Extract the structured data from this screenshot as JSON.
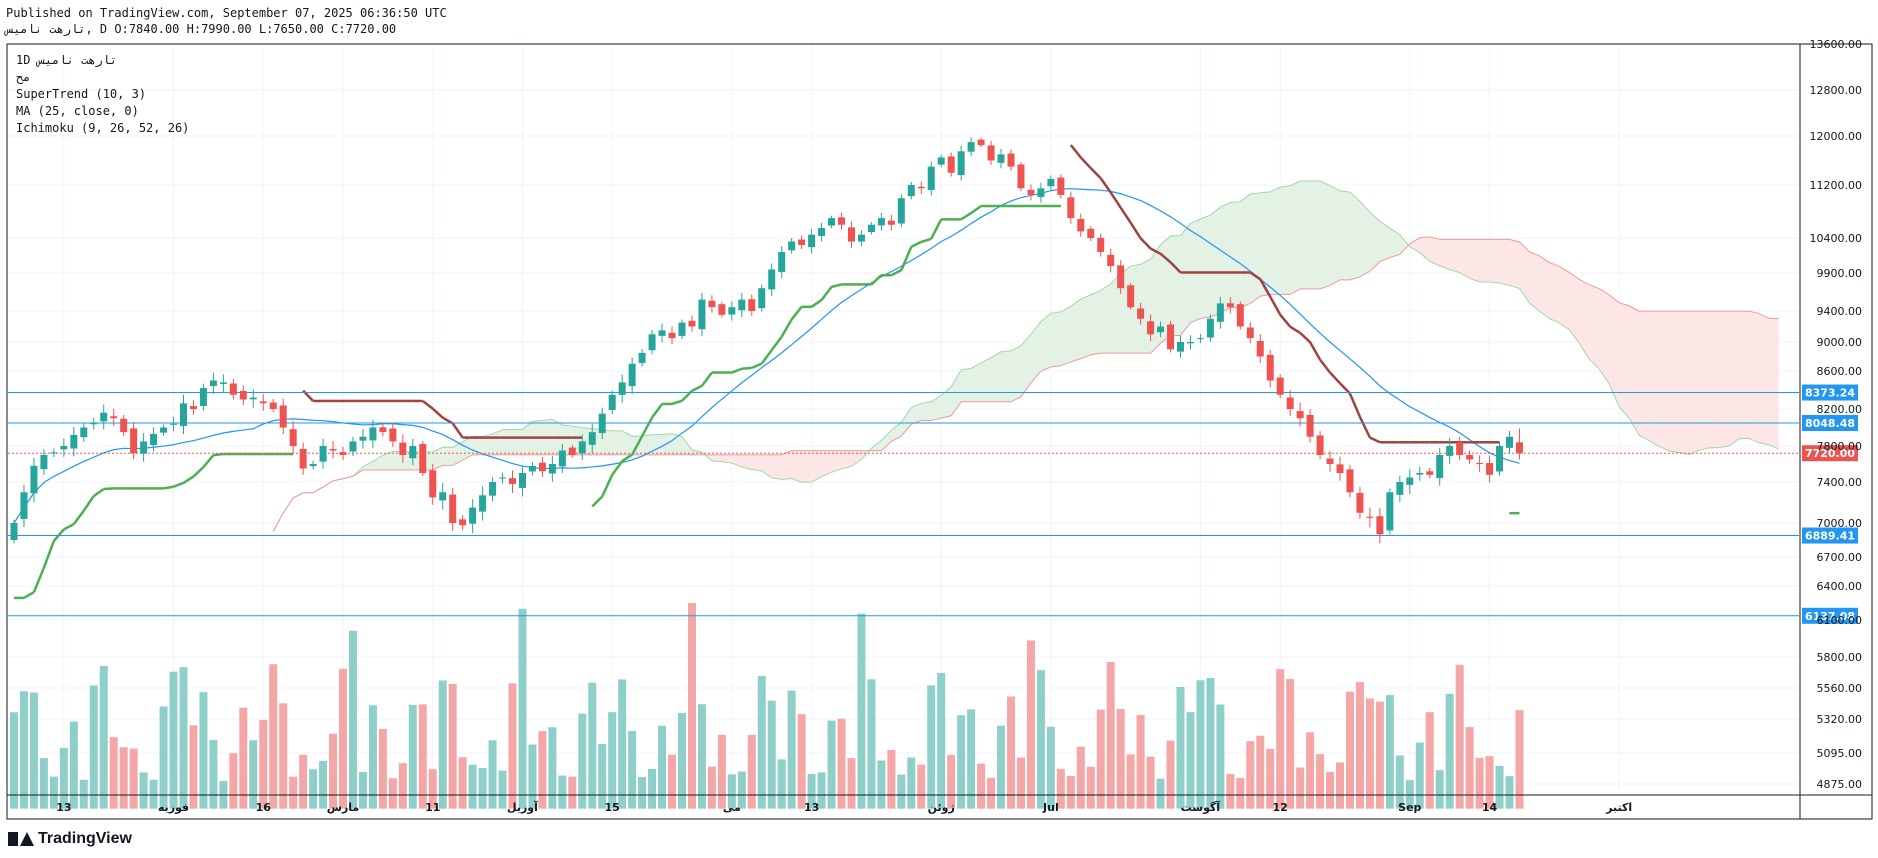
{
  "header": {
    "line1": "Published on TradingView.com, September 07, 2025 06:36:50 UTC",
    "line2": "تارهت  ناميس, D O:7840.00 H:7990.00 L:7650.00 C:7720.00"
  },
  "legend": {
    "symbol": "تارهت  ناميس",
    "interval": "1D",
    "exchange": "مح",
    "indicators": [
      "SuperTrend (10, 3)",
      "MA (25, close, 0)",
      "Ichimoku (9, 26, 52, 26)"
    ]
  },
  "footer": {
    "brand": "TradingView"
  },
  "colors": {
    "up": "#26a69a",
    "down": "#ef5350",
    "up_vol": "#8fcfc9",
    "down_vol": "#f4a7a6",
    "st_up": "#4caf50",
    "st_down": "#a0423f",
    "ma": "#2196f3",
    "hline": "#2196f3",
    "cloud_bull": "#e3f2e5",
    "cloud_bear": "#fde6e6",
    "span_a": "#a5d6a7",
    "span_b": "#ef9a9a",
    "last_price": "#ef5350",
    "grid": "#f0f3fa"
  },
  "chart_data": {
    "type": "candlestick",
    "title": "تارهت  ناميس, 1D",
    "price_range": [
      4700,
      13700
    ],
    "price_ticks": [
      13600,
      12800,
      12000,
      11200,
      10400,
      9900,
      9400,
      9000,
      8600,
      8200,
      7800,
      7400,
      7000,
      6700,
      6400,
      6100,
      5800,
      5560,
      5320,
      5095,
      4875
    ],
    "price_tick_labels": [
      "13600.00",
      "12800.00",
      "12000.00",
      "11200.00",
      "10400.00",
      "9900.00",
      "9400.00",
      "9000.00",
      "8600.00",
      "8200.00",
      "7800.00",
      "7400.00",
      "7000.00",
      "6700.00",
      "6400.00",
      "6100.00",
      "5800.00",
      "5560.00",
      "5320.00",
      "5095.00",
      "4875.00"
    ],
    "time_labels": [
      {
        "label": "13",
        "index": 5
      },
      {
        "label": "فوريه",
        "index": 16
      },
      {
        "label": "16",
        "index": 25
      },
      {
        "label": "مارس",
        "index": 33
      },
      {
        "label": "11",
        "index": 42
      },
      {
        "label": "آوريل",
        "index": 51
      },
      {
        "label": "15",
        "index": 60
      },
      {
        "label": "مى",
        "index": 72
      },
      {
        "label": "13",
        "index": 80
      },
      {
        "label": "ژوئن",
        "index": 93
      },
      {
        "label": "Jul",
        "index": 104
      },
      {
        "label": "آگوست",
        "index": 119
      },
      {
        "label": "12",
        "index": 127
      },
      {
        "label": "Sep",
        "index": 140
      },
      {
        "label": "14",
        "index": 148
      },
      {
        "label": "اکتبر",
        "index": 161
      }
    ],
    "horizontal_lines": [
      {
        "price": 8373.24,
        "label": "8373.24"
      },
      {
        "price": 8048.48,
        "label": "8048.48"
      },
      {
        "price": 6889.41,
        "label": "6889.41"
      },
      {
        "price": 6137.08,
        "label": "6137.08"
      }
    ],
    "last_price": {
      "price": 7720.0,
      "label": "7720.00"
    },
    "ohlc_last": {
      "open": 7840.0,
      "high": 7990.0,
      "low": 7650.0,
      "close": 7720.0
    },
    "closes": [
      7000,
      7300,
      7580,
      7700,
      7730,
      7800,
      7920,
      8000,
      8050,
      8160,
      8100,
      7950,
      7720,
      7850,
      7930,
      8000,
      8040,
      8260,
      8200,
      8420,
      8500,
      8480,
      8350,
      8300,
      8320,
      8260,
      8200,
      8000,
      7800,
      7550,
      7600,
      7800,
      7750,
      7700,
      7850,
      7900,
      8000,
      7950,
      7850,
      7700,
      7800,
      7500,
      7250,
      7300,
      7000,
      6980,
      7150,
      7270,
      7400,
      7450,
      7380,
      7500,
      7580,
      7520,
      7600,
      7750,
      7700,
      7850,
      7950,
      8150,
      8350,
      8480,
      8700,
      8850,
      9100,
      9150,
      9050,
      9250,
      9200,
      9550,
      9450,
      9350,
      9450,
      9550,
      9400,
      9700,
      9950,
      10200,
      10350,
      10300,
      10450,
      10550,
      10700,
      10600,
      10350,
      10450,
      10600,
      10700,
      10600,
      11000,
      11200,
      11150,
      11500,
      11650,
      11400,
      11750,
      11900,
      11850,
      11600,
      11700,
      11500,
      11150,
      11050,
      11150,
      11300,
      11050,
      10700,
      10500,
      10400,
      10200,
      10000,
      9700,
      9450,
      9300,
      9100,
      9200,
      8900,
      9000,
      9000,
      9050,
      9300,
      9500,
      9450,
      9200,
      9050,
      8800,
      8500,
      8350,
      8200,
      8100,
      7900,
      7700,
      7600,
      7500,
      7300,
      7100,
      7050,
      6900,
      7300,
      7400,
      7450,
      7500,
      7480,
      7700,
      7800,
      7700,
      7650,
      7600,
      7480,
      7800,
      7900,
      7720
    ],
    "volume_range": [
      4700,
      6300
    ]
  }
}
